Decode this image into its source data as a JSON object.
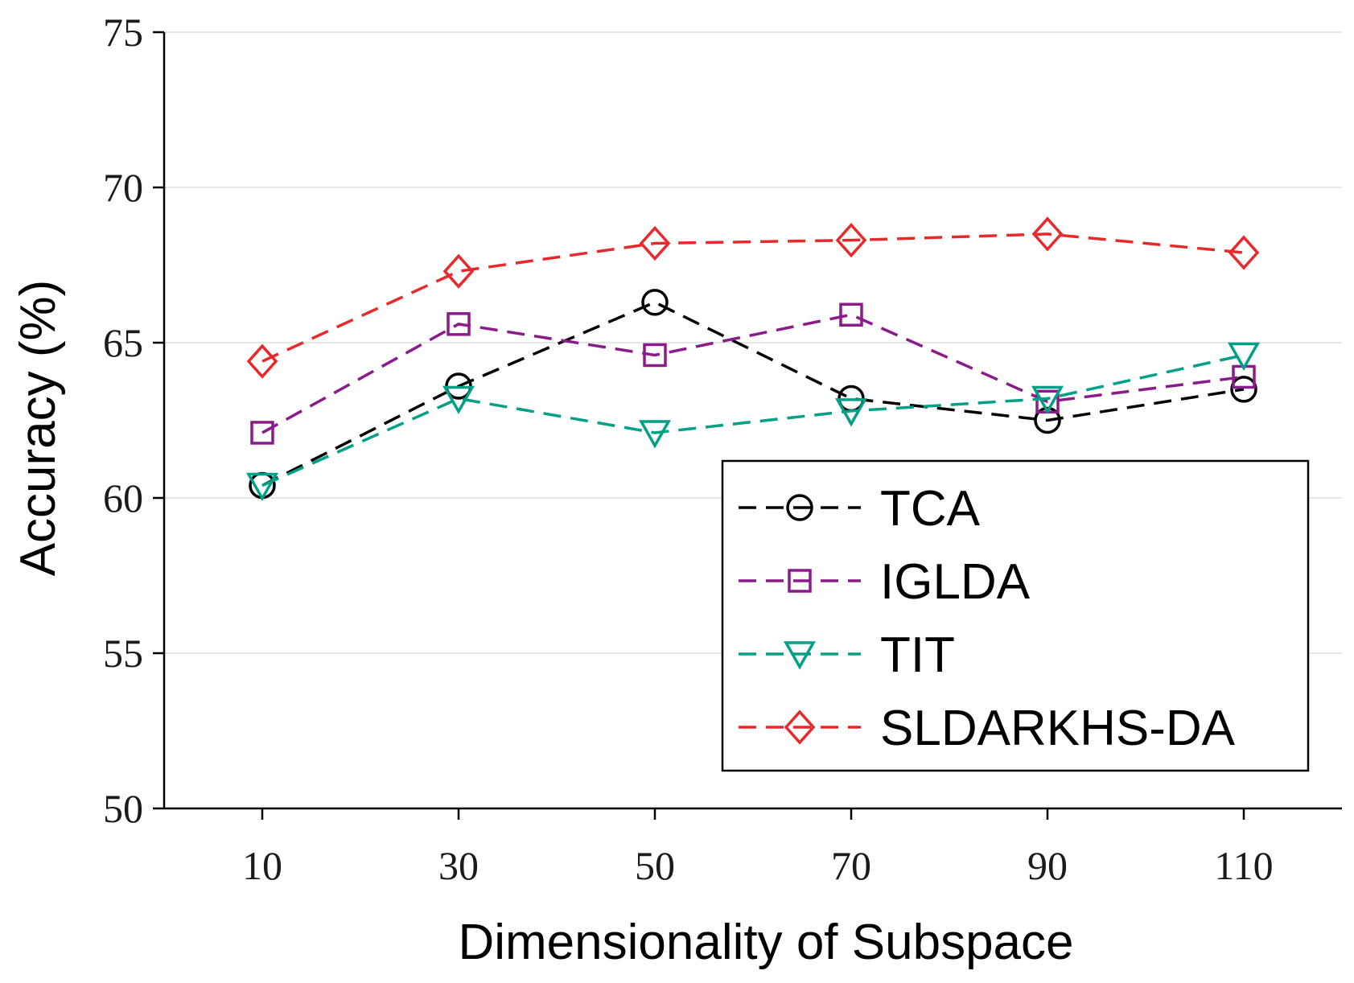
{
  "chart_data": {
    "type": "line",
    "title": "",
    "xlabel": "Dimensionality of Subspace",
    "ylabel": "Accuracy (%)",
    "categories": [
      "10",
      "30",
      "50",
      "70",
      "90",
      "110"
    ],
    "x": [
      10,
      30,
      50,
      70,
      90,
      110
    ],
    "xlim": [
      0,
      120
    ],
    "ylim": [
      50,
      75
    ],
    "yticks": [
      "50",
      "55",
      "60",
      "65",
      "70",
      "75"
    ],
    "grid": "horizontal",
    "legend_position": "lower-right",
    "series": [
      {
        "name": "TCA",
        "marker": "circle",
        "color": "#000000",
        "values": [
          60.4,
          63.6,
          66.3,
          63.2,
          62.5,
          63.5
        ]
      },
      {
        "name": "IGLDA",
        "marker": "square",
        "color": "#8b1a8b",
        "values": [
          62.1,
          65.6,
          64.6,
          65.9,
          63.1,
          63.9
        ]
      },
      {
        "name": "TIT",
        "marker": "triangle-down",
        "color": "#00a087",
        "values": [
          60.4,
          63.2,
          62.1,
          62.8,
          63.2,
          64.6
        ]
      },
      {
        "name": "SLDARKHS-DA",
        "marker": "diamond",
        "color": "#e8292b",
        "values": [
          64.4,
          67.3,
          68.2,
          68.3,
          68.5,
          67.9
        ]
      }
    ]
  }
}
